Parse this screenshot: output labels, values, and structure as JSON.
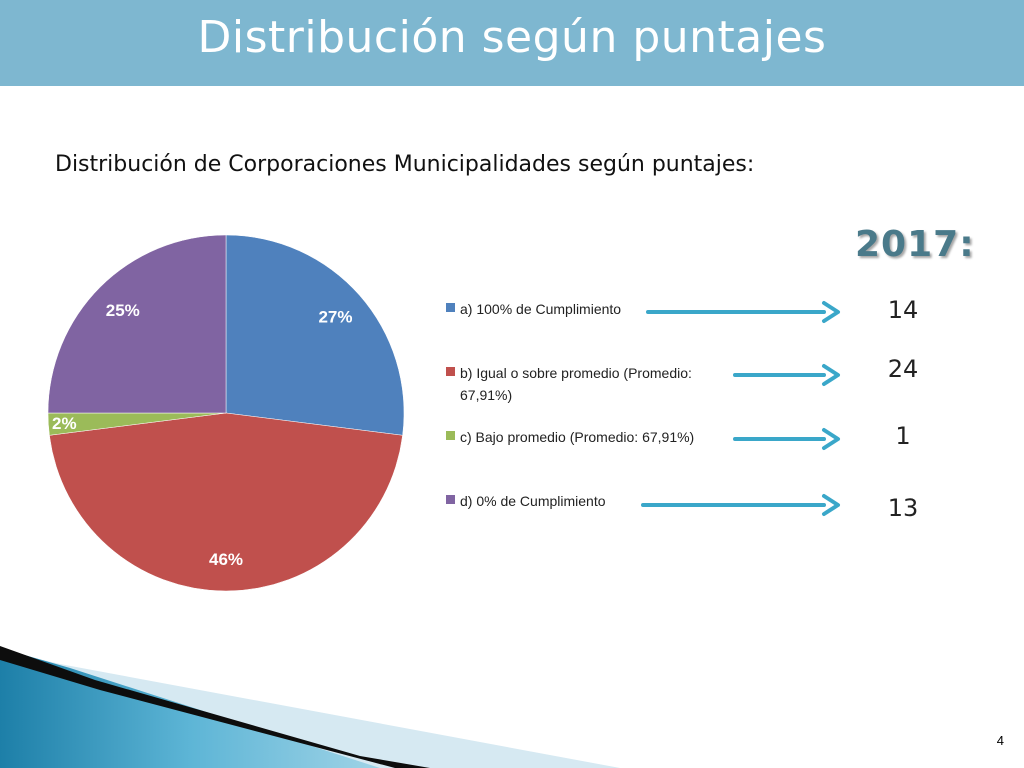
{
  "title": "Distribución según puntajes",
  "subtitle": "Distribución de Corporaciones Municipalidades según puntajes:",
  "year_label": "2017:",
  "counts": [
    "14",
    "24",
    "1",
    "13"
  ],
  "page_number": "4",
  "colors": {
    "title_bar": "#7eb7d0",
    "arrow": "#3aa7c9",
    "series": [
      "#4f81bd",
      "#c0504d",
      "#9bbb59",
      "#8064a2"
    ]
  },
  "chart_data": {
    "type": "pie",
    "title": "",
    "categories": [
      "a) 100% de Cumplimiento",
      "b) Igual o sobre promedio (Promedio: 67,91%)",
      "c) Bajo promedio (Promedio: 67,91%)",
      "d) 0% de Cumplimiento"
    ],
    "values": [
      27,
      46,
      2,
      25
    ],
    "labels": [
      "27%",
      "46%",
      "2%",
      "25%"
    ],
    "legend_position": "right"
  }
}
